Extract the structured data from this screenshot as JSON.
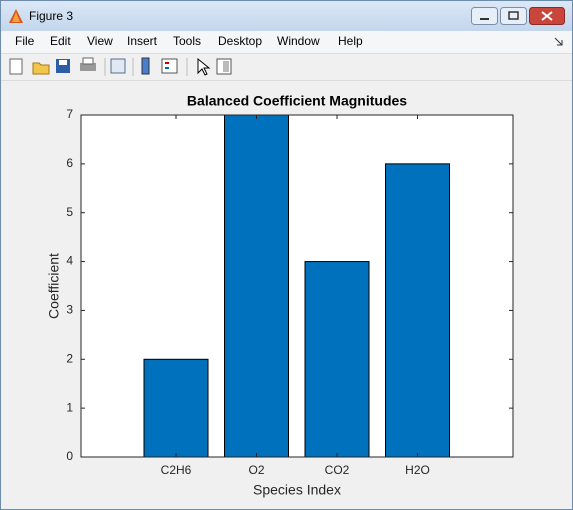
{
  "window": {
    "title": "Figure 3",
    "menu": [
      "File",
      "Edit",
      "View",
      "Insert",
      "Tools",
      "Desktop",
      "Window",
      "Help"
    ]
  },
  "chart_data": {
    "type": "bar",
    "title": "Balanced Coefficient Magnitudes",
    "x_label": "Species Index",
    "y_label": "Coefficient",
    "categories": [
      "C2H6",
      "O2",
      "CO2",
      "H2O"
    ],
    "values": [
      2,
      7,
      4,
      6
    ],
    "color": "#0072bd",
    "ylim": [
      0,
      7
    ],
    "yticks": [
      0,
      1,
      2,
      3,
      4,
      5,
      6,
      7
    ],
    "grid": false
  }
}
